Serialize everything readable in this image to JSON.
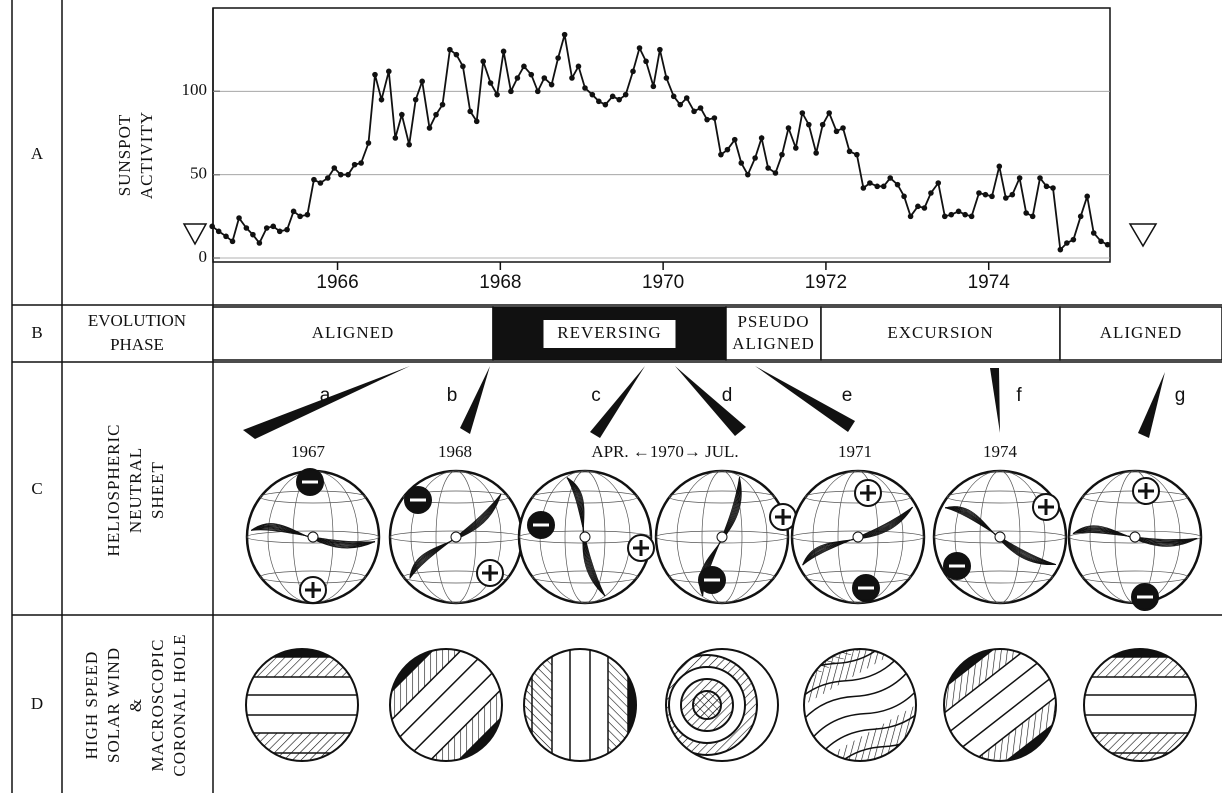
{
  "rows": [
    {
      "label": "A",
      "title": [
        "SUNSPOT",
        "ACTIVITY"
      ]
    },
    {
      "label": "B",
      "title": [
        "EVOLUTION",
        "PHASE"
      ]
    },
    {
      "label": "C",
      "title": [
        "HELIOSPHERIC",
        "NEUTRAL",
        "SHEET"
      ]
    },
    {
      "label": "D",
      "title": [
        "HIGH SPEED",
        "SOLAR WIND",
        "&",
        "MACROSCOPIC",
        "CORONAL HOLE"
      ]
    }
  ],
  "chart_data": {
    "type": "line",
    "color": "#111111",
    "grid": true,
    "x": [
      1964.46,
      1964.54,
      1964.63,
      1964.71,
      1964.79,
      1964.88,
      1964.96,
      1965.04,
      1965.13,
      1965.21,
      1965.29,
      1965.38,
      1965.46,
      1965.54,
      1965.63,
      1965.71,
      1965.79,
      1965.88,
      1965.96,
      1966.04,
      1966.13,
      1966.21,
      1966.29,
      1966.38,
      1966.46,
      1966.54,
      1966.63,
      1966.71,
      1966.79,
      1966.88,
      1966.96,
      1967.04,
      1967.13,
      1967.21,
      1967.29,
      1967.38,
      1967.46,
      1967.54,
      1967.63,
      1967.71,
      1967.79,
      1967.88,
      1967.96,
      1968.04,
      1968.13,
      1968.21,
      1968.29,
      1968.38,
      1968.46,
      1968.54,
      1968.63,
      1968.71,
      1968.79,
      1968.88,
      1968.96,
      1969.04,
      1969.13,
      1969.21,
      1969.29,
      1969.38,
      1969.46,
      1969.54,
      1969.63,
      1969.71,
      1969.79,
      1969.88,
      1969.96,
      1970.04,
      1970.13,
      1970.21,
      1970.29,
      1970.38,
      1970.46,
      1970.54,
      1970.63,
      1970.71,
      1970.79,
      1970.88,
      1970.96,
      1971.04,
      1971.13,
      1971.21,
      1971.29,
      1971.38,
      1971.46,
      1971.54,
      1971.63,
      1971.71,
      1971.79,
      1971.88,
      1971.96,
      1972.04,
      1972.13,
      1972.21,
      1972.29,
      1972.38,
      1972.46,
      1972.54,
      1972.63,
      1972.71,
      1972.79,
      1972.88,
      1972.96,
      1973.04,
      1973.13,
      1973.21,
      1973.29,
      1973.38,
      1973.46,
      1973.54,
      1973.63,
      1973.71,
      1973.79,
      1973.88,
      1973.96,
      1974.04,
      1974.13,
      1974.21,
      1974.29,
      1974.38,
      1974.46,
      1974.54,
      1974.63,
      1974.71,
      1974.79,
      1974.88,
      1974.96,
      1975.04,
      1975.13,
      1975.21,
      1975.29,
      1975.38,
      1975.46
    ],
    "values": [
      19,
      16,
      13,
      10,
      24,
      18,
      14,
      9,
      18,
      19,
      16,
      17,
      28,
      25,
      26,
      47,
      45,
      48,
      54,
      50,
      50,
      56,
      57,
      69,
      110,
      95,
      112,
      72,
      86,
      68,
      95,
      106,
      78,
      86,
      92,
      125,
      122,
      115,
      88,
      82,
      118,
      105,
      98,
      124,
      100,
      108,
      115,
      110,
      100,
      108,
      104,
      120,
      134,
      108,
      115,
      102,
      98,
      94,
      92,
      97,
      95,
      98,
      112,
      126,
      118,
      103,
      125,
      108,
      97,
      92,
      96,
      88,
      90,
      83,
      84,
      62,
      65,
      71,
      57,
      50,
      60,
      72,
      54,
      51,
      62,
      78,
      66,
      87,
      80,
      63,
      80,
      87,
      76,
      78,
      64,
      62,
      42,
      45,
      43,
      43,
      48,
      44,
      37,
      25,
      31,
      30,
      39,
      45,
      25,
      26,
      28,
      26,
      25,
      39,
      38,
      37,
      55,
      36,
      38,
      48,
      27,
      25,
      48,
      43,
      42,
      5,
      9,
      11,
      25,
      37,
      15,
      10,
      8
    ],
    "xlim": [
      1964.47,
      1975.49
    ],
    "ylim": [
      0,
      150
    ],
    "xticks": [
      1966,
      1968,
      1970,
      1972,
      1974
    ],
    "yticks": [
      0,
      50,
      100
    ]
  },
  "phases": [
    {
      "label": [
        "ALIGNED"
      ]
    },
    {
      "label": [
        "REVERSING"
      ]
    },
    {
      "label": [
        "PSEUDO",
        "ALIGNED"
      ]
    },
    {
      "label": [
        "EXCURSION"
      ]
    },
    {
      "label": [
        "ALIGNED"
      ]
    }
  ],
  "letters": [
    "a",
    "b",
    "c",
    "d",
    "e",
    "f",
    "g"
  ],
  "dates": [
    "1967",
    "1968",
    "APR. ←1970→ JUL.",
    "1971",
    "1974"
  ]
}
